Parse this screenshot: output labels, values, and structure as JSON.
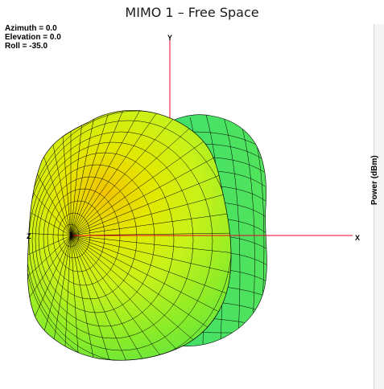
{
  "window": {
    "title": "MIMO 1 – Free Space"
  },
  "orientation": {
    "azimuth": "Azimuth = 0.0",
    "elevation": "Elevation = 0.0",
    "roll": "Roll = -35.0"
  },
  "axes": {
    "x": "X",
    "y": "Y",
    "z": "Z"
  },
  "legend": {
    "label": "Power (dBm)"
  },
  "colors": {
    "axis": "#e8002a",
    "hot": "#f2c400",
    "warm": "#d9ee10",
    "mid": "#a6f01d",
    "cool": "#33e05a",
    "mesh": "#000000"
  }
}
